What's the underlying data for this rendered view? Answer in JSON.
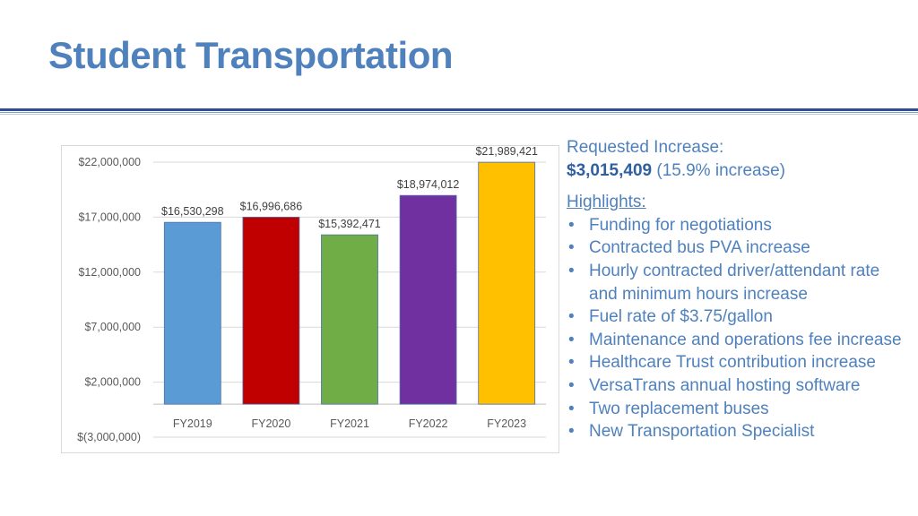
{
  "slide": {
    "title": "Student Transportation"
  },
  "request": {
    "heading": "Requested Increase:",
    "amount": "$3,015,409",
    "percent_note": "(15.9% increase)"
  },
  "highlights": {
    "heading": "Highlights:",
    "items": [
      "Funding for negotiations",
      "Contracted bus PVA increase",
      "Hourly contracted driver/attendant rate and minimum hours increase",
      "Fuel rate of $3.75/gallon",
      "Maintenance and operations fee increase",
      "Healthcare Trust contribution increase",
      "VersaTrans annual hosting software",
      "Two replacement buses",
      "New Transportation Specialist"
    ]
  },
  "chart_data": {
    "type": "bar",
    "categories": [
      "FY2019",
      "FY2020",
      "FY2021",
      "FY2022",
      "FY2023"
    ],
    "values": [
      16530298,
      16996686,
      15392471,
      18974012,
      21989421
    ],
    "data_labels": [
      "$16,530,298",
      "$16,996,686",
      "$15,392,471",
      "$18,974,012",
      "$21,989,421"
    ],
    "bar_colors": [
      "#5b9bd5",
      "#c00000",
      "#70ad47",
      "#7030a0",
      "#ffc000"
    ],
    "ylim": [
      -3000000,
      22000000
    ],
    "yticks": [
      22000000,
      17000000,
      12000000,
      7000000,
      2000000,
      -3000000
    ],
    "ytick_labels": [
      "$22,000,000",
      "$17,000,000",
      "$12,000,000",
      "$7,000,000",
      "$2,000,000",
      "$(3,000,000)"
    ],
    "grid": true,
    "legend": "none"
  }
}
